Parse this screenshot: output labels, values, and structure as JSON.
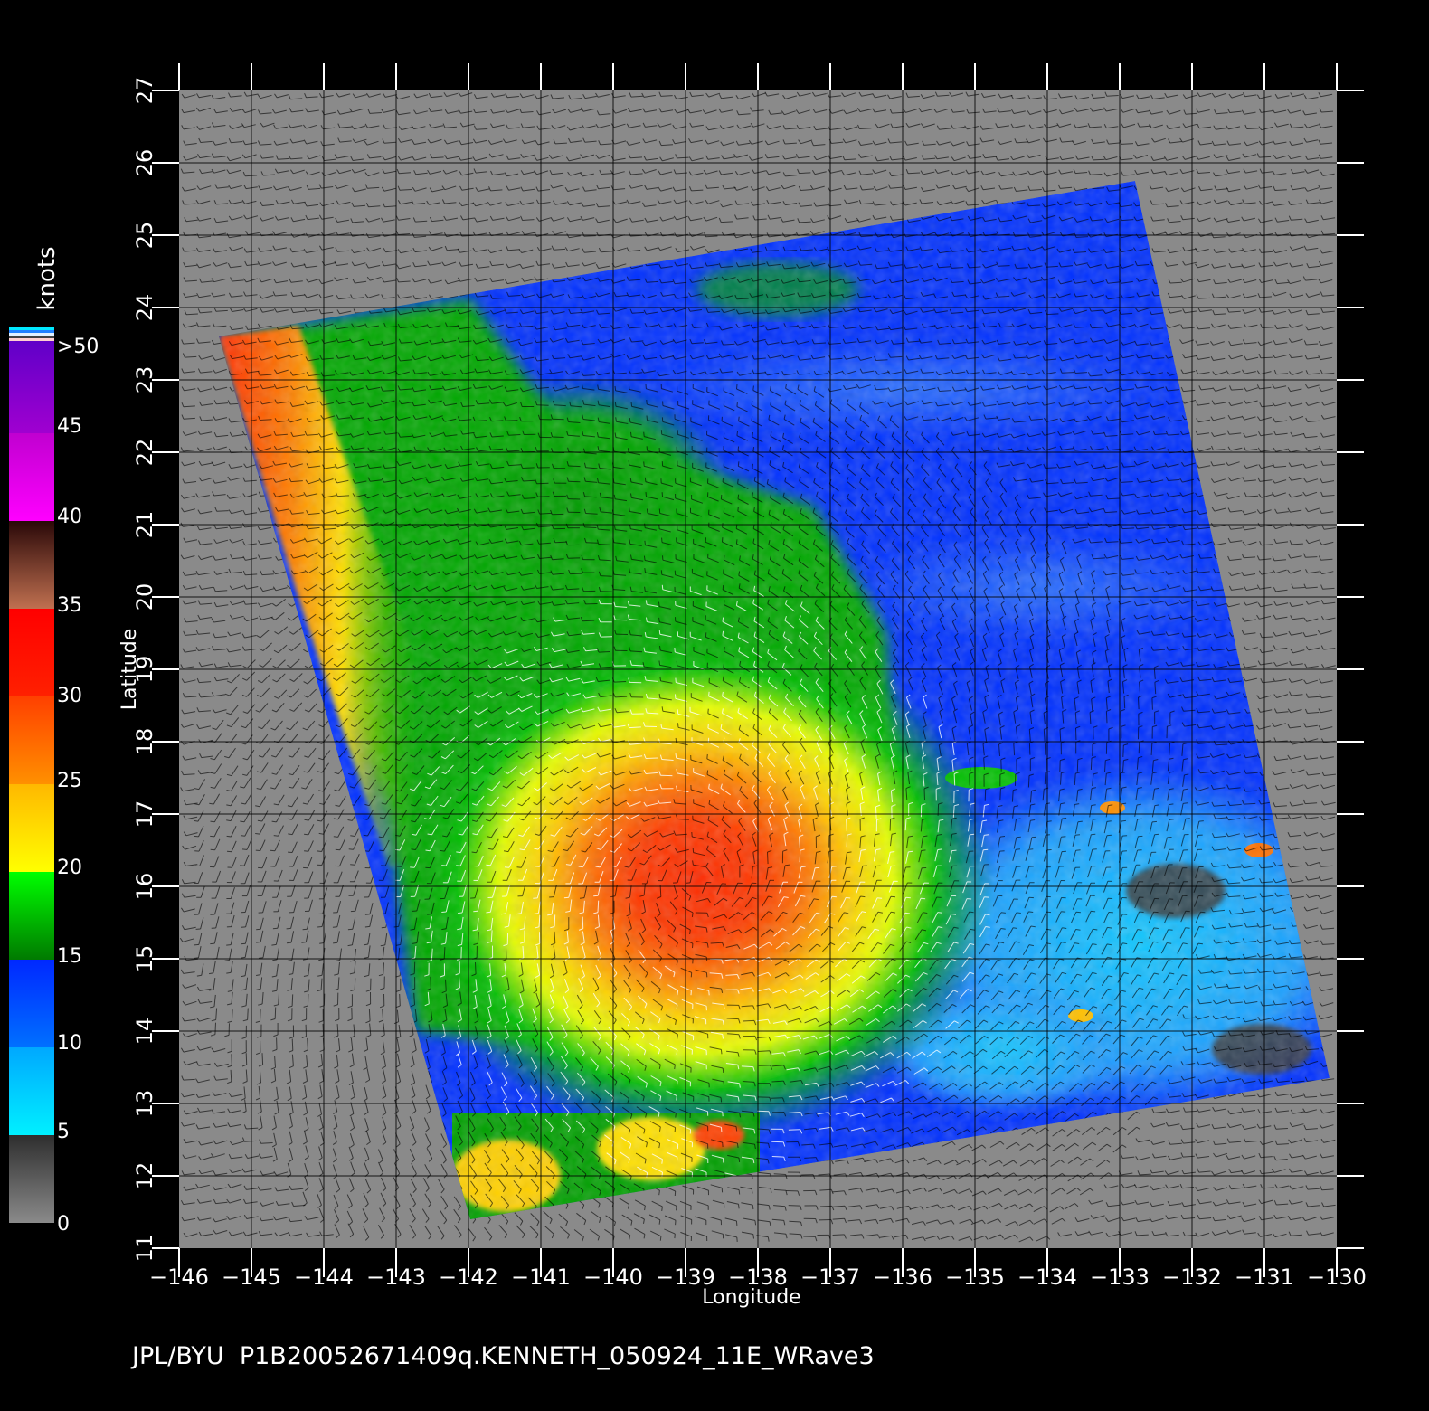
{
  "map": {
    "x_axis_label": "Longitude",
    "y_axis_label": "Latitude",
    "lon_ticks": [
      "−146",
      "−145",
      "−144",
      "−143",
      "−142",
      "−141",
      "−140",
      "−139",
      "−138",
      "−137",
      "−136",
      "−135",
      "−134",
      "−133",
      "−132",
      "−131",
      "−130"
    ],
    "lat_ticks": [
      "11",
      "12",
      "13",
      "14",
      "15",
      "16",
      "17",
      "18",
      "19",
      "20",
      "21",
      "22",
      "23",
      "24",
      "25",
      "26",
      "27"
    ],
    "lon_range": [
      -146,
      -130
    ],
    "lat_range": [
      11,
      27
    ],
    "footer": "JPL/BYU  P1B20052671409q.KENNETH_050924_11E_WRave3",
    "storm_center": {
      "lon": -138.7,
      "lat": 15.9
    }
  },
  "colorbar": {
    "title": "knots",
    "labels": [
      "0",
      "5",
      "10",
      "15",
      "20",
      "25",
      "30",
      "35",
      "40",
      "45",
      ">50"
    ],
    "colors": {
      "gray_0_5": [
        "#8a8a8a",
        "#2e2e2e"
      ],
      "cyan_5_10": "#00e8ff",
      "blue_10_15": "#0030ff",
      "green_15_20": "#008a00",
      "yellow_20_25": "#ffff00",
      "orange_25_30": "#ff7a00",
      "red_30_35": "#ff1000",
      "brown_35_40": "#4a1a10",
      "magenta_40_45": "#ff00ff",
      "purple_45_50": "#7000d0"
    }
  }
}
